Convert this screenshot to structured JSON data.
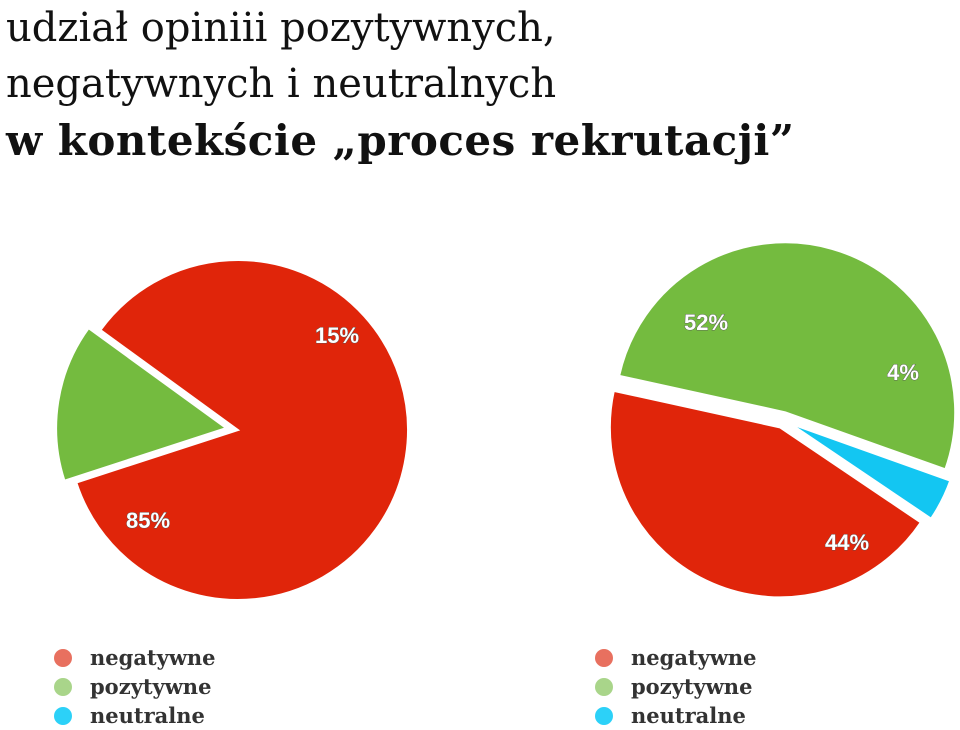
{
  "title": {
    "line1": "udział opiniii pozytywnych,",
    "line2": "negatywnych i neutralnych",
    "line3": "w kontekście „proces rekrutacji”"
  },
  "colors": {
    "negatywne": "#e0250a",
    "pozytywne": "#74bb3f",
    "neutralne": "#13c6f2",
    "legend_negatywne": "#e8705f",
    "legend_pozytywne": "#a9d58a",
    "legend_neutralne": "#2cd1f8"
  },
  "chart_data": [
    {
      "type": "pie",
      "slices": [
        {
          "label": "negatywne",
          "value": 85,
          "text": "85%"
        },
        {
          "label": "pozytywne",
          "value": 15,
          "text": "15%"
        }
      ],
      "legend": [
        "negatywne",
        "pozytywne",
        "neutralne"
      ],
      "legend_placement": "bottom-left"
    },
    {
      "type": "pie",
      "slices": [
        {
          "label": "negatywne",
          "value": 44,
          "text": "44%"
        },
        {
          "label": "pozytywne",
          "value": 52,
          "text": "52%"
        },
        {
          "label": "neutralne",
          "value": 4,
          "text": "4%"
        }
      ],
      "legend": [
        "negatywne",
        "pozytywne",
        "neutralne"
      ],
      "legend_placement": "bottom-right"
    }
  ]
}
